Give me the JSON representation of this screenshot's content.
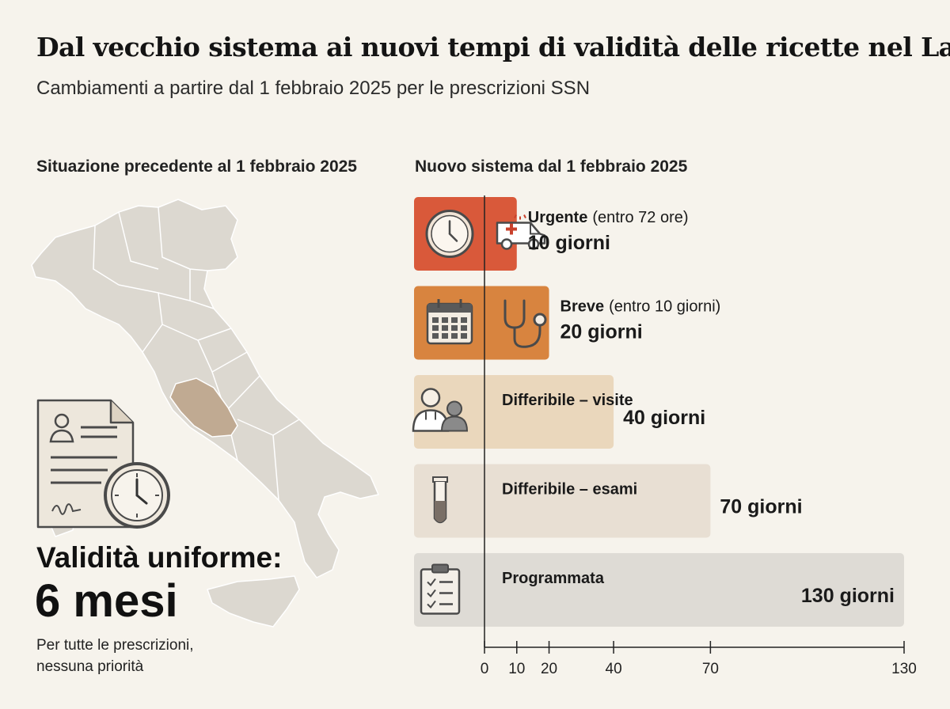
{
  "title": "Dal vecchio sistema ai nuovi tempi di validità delle ricette nel Lazio",
  "subtitle": "Cambiamenti a partire dal 1 febbraio 2025 per le prescrizioni SSN",
  "left_panel": {
    "heading": "Situazione precedente al 1 febbraio 2025",
    "validity_label": "Validità uniforme:",
    "validity_value": "6 mesi",
    "note_line1": "Per tutte le prescrizioni,",
    "note_line2": "nessuna priorità",
    "icons": [
      "italy-map",
      "prescription-document-icon",
      "clock-icon"
    ]
  },
  "right_panel": {
    "heading": "Nuovo sistema dal 1 febbraio 2025"
  },
  "chart_data": {
    "type": "bar",
    "orientation": "horizontal",
    "categories": [
      "Urgente",
      "Breve",
      "Differibile – visite",
      "Differibile – esami",
      "Programmata"
    ],
    "qualifiers": [
      "(entro 72 ore)",
      "(entro 10 giorni)",
      "",
      "",
      ""
    ],
    "values": [
      10,
      20,
      40,
      70,
      130
    ],
    "value_labels": [
      "10 giorni",
      "20 giorni",
      "40 giorni",
      "70 giorni",
      "130 giorni"
    ],
    "unit": "giorni",
    "colors": [
      "#d9593a",
      "#d8843f",
      "#ead7bc",
      "#e8dfd3",
      "#dedbd5"
    ],
    "icons": [
      [
        "clock-icon",
        "ambulance-icon"
      ],
      [
        "calendar-icon",
        "stethoscope-icon"
      ],
      [
        "doctor-patient-icon"
      ],
      [
        "test-tube-icon"
      ],
      [
        "clipboard-checklist-icon"
      ]
    ],
    "xticks": [
      0,
      10,
      20,
      40,
      70,
      130
    ],
    "xlim": [
      0,
      130
    ],
    "grid": false
  }
}
